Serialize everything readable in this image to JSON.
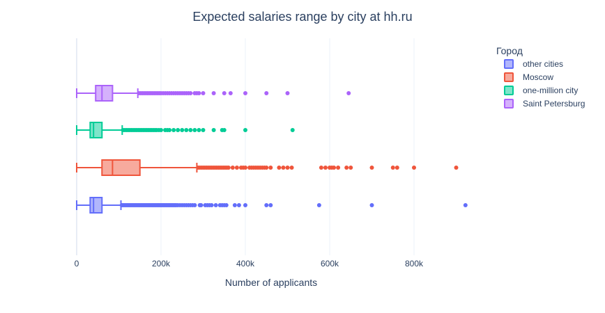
{
  "chart_data": {
    "type": "box",
    "orientation": "horizontal",
    "title": "Expected salaries range by city at hh.ru",
    "xlabel": "Number of applicants",
    "ylabel": "",
    "xlim": [
      -10000,
      940000
    ],
    "xticks": [
      0,
      200000,
      400000,
      600000,
      800000
    ],
    "xtick_labels": [
      "0",
      "200k",
      "400k",
      "600k",
      "800k"
    ],
    "grid": true,
    "legend": {
      "title": "Город",
      "placement": "right"
    },
    "series": [
      {
        "name": "other cities",
        "color": "#636efa",
        "min": 0,
        "q1": 32000,
        "median": 40000,
        "q3": 60000,
        "max": 105000,
        "outliers": [
          107000,
          110000,
          113000,
          116000,
          119000,
          122000,
          125000,
          128000,
          131000,
          134000,
          137000,
          140000,
          143000,
          146000,
          149000,
          152000,
          155000,
          158000,
          161000,
          164000,
          167000,
          170000,
          173000,
          176000,
          179000,
          182000,
          185000,
          188000,
          191000,
          194000,
          197000,
          200000,
          203000,
          206000,
          209000,
          212000,
          215000,
          218000,
          221000,
          224000,
          227000,
          230000,
          233000,
          236000,
          240000,
          245000,
          250000,
          255000,
          260000,
          265000,
          270000,
          275000,
          280000,
          292000,
          295000,
          305000,
          310000,
          315000,
          320000,
          330000,
          340000,
          345000,
          350000,
          355000,
          375000,
          385000,
          400000,
          450000,
          460000,
          575000,
          700000,
          922000
        ]
      },
      {
        "name": "Moscow",
        "color": "#ef553b",
        "min": 0,
        "q1": 60000,
        "median": 85000,
        "q3": 150000,
        "max": 285000,
        "outliers": [
          288000,
          292000,
          296000,
          300000,
          304000,
          308000,
          312000,
          316000,
          320000,
          324000,
          328000,
          332000,
          336000,
          340000,
          344000,
          348000,
          352000,
          356000,
          360000,
          370000,
          380000,
          390000,
          395000,
          400000,
          410000,
          415000,
          420000,
          425000,
          430000,
          435000,
          440000,
          445000,
          450000,
          460000,
          480000,
          490000,
          500000,
          510000,
          580000,
          590000,
          600000,
          605000,
          610000,
          620000,
          640000,
          650000,
          700000,
          750000,
          760000,
          800000,
          900000
        ]
      },
      {
        "name": "one-million city",
        "color": "#00cc96",
        "min": 0,
        "q1": 32000,
        "median": 40000,
        "q3": 60000,
        "max": 108000,
        "outliers": [
          110000,
          114000,
          118000,
          122000,
          126000,
          130000,
          134000,
          138000,
          142000,
          146000,
          150000,
          154000,
          158000,
          162000,
          166000,
          170000,
          174000,
          178000,
          182000,
          186000,
          190000,
          195000,
          200000,
          210000,
          215000,
          220000,
          230000,
          240000,
          250000,
          260000,
          270000,
          280000,
          290000,
          300000,
          325000,
          345000,
          350000,
          400000,
          512000
        ]
      },
      {
        "name": "Saint Petersburg",
        "color": "#ab63fa",
        "min": 0,
        "q1": 45000,
        "median": 60000,
        "q3": 85000,
        "max": 145000,
        "outliers": [
          148000,
          152000,
          156000,
          160000,
          164000,
          168000,
          172000,
          176000,
          180000,
          184000,
          188000,
          192000,
          196000,
          200000,
          205000,
          210000,
          215000,
          220000,
          225000,
          230000,
          235000,
          240000,
          245000,
          250000,
          255000,
          260000,
          265000,
          270000,
          280000,
          285000,
          290000,
          300000,
          325000,
          350000,
          365000,
          400000,
          450000,
          500000,
          645000
        ]
      }
    ]
  }
}
